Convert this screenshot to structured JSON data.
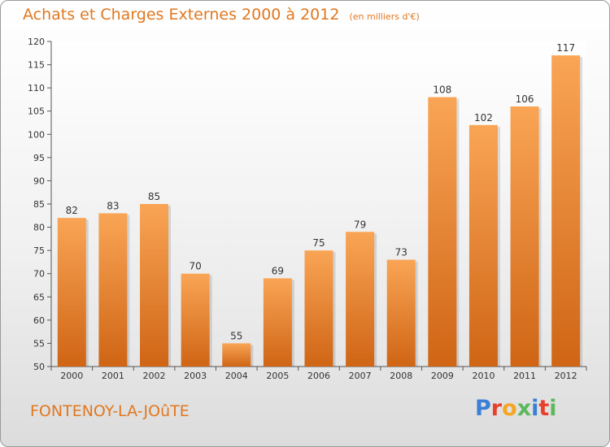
{
  "title": "Achats et Charges Externes 2000 à 2012",
  "subtitle": "(en milliers d'€)",
  "location": "FONTENOY-LA-JOûTE",
  "brand": {
    "text": "Proxiti",
    "colors": [
      "#3a7fd5",
      "#e8402a",
      "#f5a623",
      "#5cb85c",
      "#3a7fd5",
      "#e8402a",
      "#5cb85c"
    ]
  },
  "colors": {
    "accent": "#e07820",
    "bar_light": "#f9a555",
    "bar_dark": "#cf6515"
  },
  "chart_data": {
    "type": "bar",
    "categories": [
      "2000",
      "2001",
      "2002",
      "2003",
      "2004",
      "2005",
      "2006",
      "2007",
      "2008",
      "2009",
      "2010",
      "2011",
      "2012"
    ],
    "values": [
      82,
      83,
      85,
      70,
      55,
      69,
      75,
      79,
      73,
      108,
      102,
      106,
      117
    ],
    "ylim": [
      50,
      120
    ],
    "yticks": [
      50,
      55,
      60,
      65,
      70,
      75,
      80,
      85,
      90,
      95,
      100,
      105,
      110,
      115,
      120
    ],
    "grid": false,
    "data_labels": true
  }
}
